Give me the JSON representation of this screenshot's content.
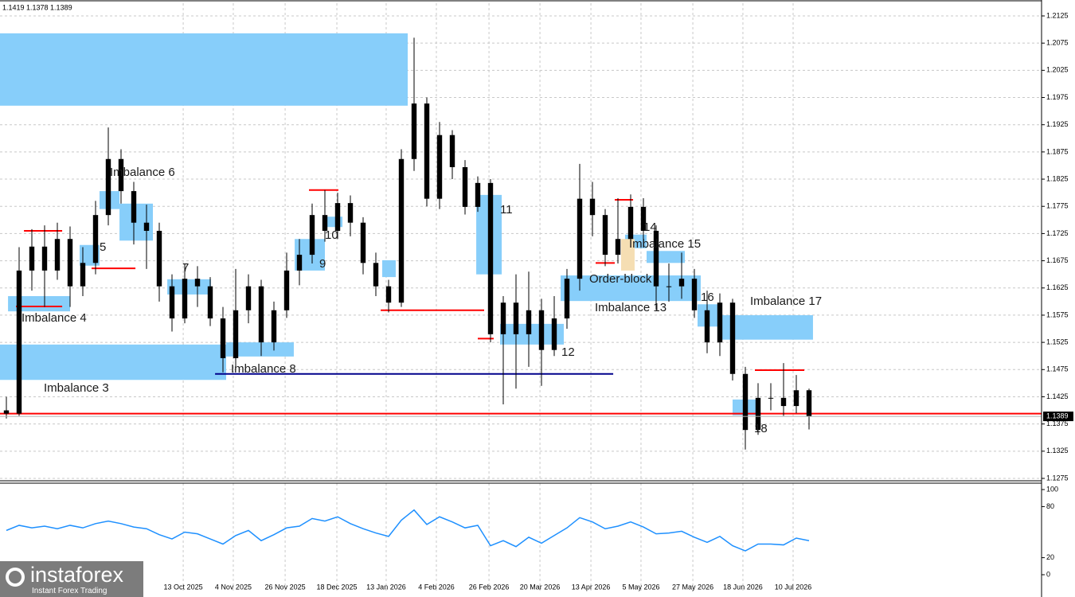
{
  "chart_data": [
    {
      "type": "candlestick",
      "title": "1.1419 1.1378 1.1389",
      "color": "#000000",
      "grid": true,
      "open": [
        1.14,
        1.1394,
        1.1657,
        1.1701,
        1.1657,
        1.1715,
        1.1628,
        1.1671,
        1.1759,
        1.1862,
        1.1803,
        1.1745,
        1.173,
        1.1628,
        1.1569,
        1.1642,
        1.1628,
        1.1569,
        1.1496,
        1.1584,
        1.1628,
        1.1525,
        1.1584,
        1.1657,
        1.1686,
        1.1759,
        1.173,
        1.1781,
        1.1745,
        1.1671,
        1.1628,
        1.1598,
        1.1862,
        1.1964,
        1.1789,
        1.1906,
        1.1847,
        1.1774,
        1.1818,
        1.154,
        1.1598,
        1.154,
        1.1584,
        1.1511,
        1.1569,
        1.1642,
        1.1789,
        1.1759,
        1.1686,
        1.1715,
        1.1774,
        1.173,
        1.1628,
        1.1628,
        1.1642,
        1.1584,
        1.1525,
        1.1598,
        1.1467,
        1.1364,
        1.1423,
        1.1423,
        1.1408,
        1.1437
      ],
      "high": [
        1.1425,
        1.17,
        1.1733,
        1.174,
        1.1745,
        1.1738,
        1.17,
        1.1785,
        1.192,
        1.188,
        1.182,
        1.1778,
        1.1745,
        1.165,
        1.167,
        1.1665,
        1.1645,
        1.159,
        1.166,
        1.165,
        1.164,
        1.16,
        1.169,
        1.1715,
        1.178,
        1.1805,
        1.18,
        1.1795,
        1.1755,
        1.169,
        1.164,
        1.188,
        1.2085,
        1.1975,
        1.193,
        1.1915,
        1.186,
        1.183,
        1.1825,
        1.161,
        1.165,
        1.1655,
        1.1605,
        1.161,
        1.166,
        1.1853,
        1.182,
        1.177,
        1.179,
        1.1797,
        1.179,
        1.174,
        1.167,
        1.169,
        1.166,
        1.162,
        1.1615,
        1.1605,
        1.148,
        1.145,
        1.145,
        1.1487,
        1.1465,
        1.144
      ],
      "low": [
        1.1385,
        1.139,
        1.162,
        1.159,
        1.164,
        1.159,
        1.161,
        1.165,
        1.174,
        1.178,
        1.1705,
        1.166,
        1.16,
        1.1545,
        1.156,
        1.159,
        1.1555,
        1.147,
        1.148,
        1.156,
        1.15,
        1.151,
        1.157,
        1.163,
        1.167,
        1.171,
        1.1715,
        1.172,
        1.165,
        1.161,
        1.158,
        1.159,
        1.184,
        1.1775,
        1.177,
        1.1825,
        1.176,
        1.1765,
        1.1525,
        1.1411,
        1.144,
        1.148,
        1.1445,
        1.15,
        1.155,
        1.162,
        1.172,
        1.1665,
        1.167,
        1.17,
        1.17,
        1.1585,
        1.16,
        1.1605,
        1.157,
        1.1505,
        1.15,
        1.1455,
        1.1328,
        1.1355,
        1.14,
        1.139,
        1.1395,
        1.1365
      ],
      "close": [
        1.1394,
        1.1657,
        1.1701,
        1.1657,
        1.1715,
        1.1628,
        1.1671,
        1.1759,
        1.1862,
        1.1803,
        1.1745,
        1.173,
        1.1628,
        1.1569,
        1.1642,
        1.1628,
        1.1569,
        1.1496,
        1.1584,
        1.1628,
        1.1525,
        1.1584,
        1.1657,
        1.1686,
        1.1759,
        1.173,
        1.1781,
        1.1745,
        1.1671,
        1.1628,
        1.1598,
        1.1862,
        1.1964,
        1.1789,
        1.1906,
        1.1847,
        1.1774,
        1.1818,
        1.154,
        1.1598,
        1.154,
        1.1584,
        1.1511,
        1.1569,
        1.1642,
        1.1789,
        1.1759,
        1.1686,
        1.1715,
        1.1774,
        1.173,
        1.1628,
        1.1628,
        1.1642,
        1.1584,
        1.1525,
        1.1598,
        1.1467,
        1.1364,
        1.1423,
        1.1423,
        1.1408,
        1.1437,
        1.1389
      ],
      "xlim": [
        0,
        81.75
      ],
      "xticks": [
        {
          "value": 14.38,
          "label": "13 Oct 2025"
        },
        {
          "value": 18.31,
          "label": "4 Nov 2025"
        },
        {
          "value": 22.38,
          "label": "26 Nov 2025"
        },
        {
          "value": 26.44,
          "label": "18 Dec 2025"
        },
        {
          "value": 30.31,
          "label": "13 Jan 2026"
        },
        {
          "value": 34.25,
          "label": "4 Feb 2026"
        },
        {
          "value": 38.38,
          "label": "26 Feb 2026"
        },
        {
          "value": 42.38,
          "label": "20 Mar 2026"
        },
        {
          "value": 46.38,
          "label": "13 Apr 2026"
        },
        {
          "value": 50.31,
          "label": "5 May 2026"
        },
        {
          "value": 54.38,
          "label": "27 May 2026"
        },
        {
          "value": 58.31,
          "label": "18 Jun 2026"
        },
        {
          "value": 62.25,
          "label": "10 Jul 2026"
        }
      ],
      "ylim": [
        1.12706,
        1.21484
      ],
      "yticks": [
        1.2125,
        1.2075,
        1.2025,
        1.1975,
        1.1925,
        1.1875,
        1.1825,
        1.1775,
        1.1725,
        1.1675,
        1.1625,
        1.1575,
        1.1525,
        1.1475,
        1.1425,
        1.1375,
        1.1325,
        1.1275
      ],
      "last_price": 1.1389,
      "zone_color": "#87cefa",
      "zones": [
        {
          "x": [
            0,
            32
          ],
          "y": [
            1.196,
            1.2093
          ]
        },
        {
          "label": "Imbalance 3",
          "x": [
            0,
            17.75
          ],
          "y": [
            1.1456,
            1.1521
          ]
        },
        {
          "label": "Imbalance 4",
          "x": [
            0.63,
            5.5
          ],
          "y": [
            1.1582,
            1.161
          ]
        },
        {
          "label": "5",
          "x": [
            6.25,
            7.81
          ],
          "y": [
            1.1666,
            1.1704
          ]
        },
        {
          "label": "Imbalance 6",
          "x": [
            7.81,
            9.38
          ],
          "y": [
            1.177,
            1.1803
          ]
        },
        {
          "x": [
            9.38,
            12
          ],
          "y": [
            1.1712,
            1.178
          ]
        },
        {
          "label": "7",
          "x": [
            13.13,
            16.56
          ],
          "y": [
            1.1613,
            1.1641
          ]
        },
        {
          "label": "Imbalance 8",
          "x": [
            17.75,
            23.06
          ],
          "y": [
            1.1499,
            1.1525
          ]
        },
        {
          "label": "9",
          "x": [
            23.13,
            25.5
          ],
          "y": [
            1.1657,
            1.1715
          ]
        },
        {
          "label": "10",
          "x": [
            25.31,
            26.88
          ],
          "y": [
            1.1737,
            1.1756
          ]
        },
        {
          "x": [
            30,
            31.06
          ],
          "y": [
            1.1645,
            1.1676
          ]
        },
        {
          "label": "11",
          "x": [
            37.38,
            39.38
          ],
          "y": [
            1.165,
            1.1796
          ]
        },
        {
          "label": "12",
          "x": [
            39.25,
            44.25
          ],
          "y": [
            1.1521,
            1.1559
          ]
        },
        {
          "label": "Order-block",
          "x": [
            44,
            55
          ],
          "y": [
            1.1601,
            1.1648
          ]
        },
        {
          "label": "Imbalance 13",
          "x": [
            50.75,
            55
          ],
          "y": [
            1.162,
            1.1648
          ]
        },
        {
          "label": "14",
          "x": [
            49.06,
            50.75
          ],
          "y": [
            1.1698,
            1.1723
          ]
        },
        {
          "label": "Imbalance 15",
          "x": [
            50.75,
            53.75
          ],
          "y": [
            1.1671,
            1.1693
          ]
        },
        {
          "label": "16",
          "x": [
            54.75,
            56.56
          ],
          "y": [
            1.1554,
            1.1595
          ]
        },
        {
          "label": "Imbalance 17",
          "x": [
            56.56,
            63.81
          ],
          "y": [
            1.153,
            1.1575
          ]
        },
        {
          "label": "18",
          "x": [
            57.5,
            59.5
          ],
          "y": [
            1.1391,
            1.142
          ]
        },
        {
          "x": [
            48.75,
            49.81
          ],
          "y": [
            1.1657,
            1.1715
          ],
          "color": "#f5deb3"
        }
      ],
      "levels": [
        {
          "value": 1.1394,
          "x": [
            0,
            81.75
          ],
          "color": "#ff0000"
        },
        {
          "value": 1.173,
          "x": [
            1.88,
            4.88
          ],
          "color": "#ff0000"
        },
        {
          "value": 1.1591,
          "x": [
            1.25,
            4.88
          ],
          "color": "#ff0000"
        },
        {
          "value": 1.1661,
          "x": [
            7.19,
            10.63
          ],
          "color": "#ff0000"
        },
        {
          "value": 1.1805,
          "x": [
            24.25,
            26.56
          ],
          "color": "#ff0000"
        },
        {
          "value": 1.1584,
          "x": [
            29.88,
            38
          ],
          "color": "#ff0000"
        },
        {
          "value": 1.1532,
          "x": [
            37.5,
            38.75
          ],
          "color": "#ff0000"
        },
        {
          "value": 1.1671,
          "x": [
            46.75,
            48.25
          ],
          "color": "#ff0000"
        },
        {
          "value": 1.1787,
          "x": [
            48.25,
            49.69
          ],
          "color": "#ff0000"
        },
        {
          "value": 1.1474,
          "x": [
            59.25,
            63.13
          ],
          "color": "#ff0000"
        },
        {
          "value": 1.1467,
          "x": [
            16.88,
            48.13
          ],
          "color": "#00008b"
        }
      ]
    },
    {
      "type": "line",
      "xlim": [
        0,
        81.75
      ],
      "ylim": [
        -21.5,
        107.5
      ],
      "yticks": [
        100,
        80,
        20,
        0
      ],
      "grid": true,
      "series": [
        {
          "color": "#1e90ff",
          "values": [
            52,
            58,
            55,
            57,
            54,
            58,
            55,
            60,
            63,
            60,
            56,
            54,
            47,
            42,
            50,
            48,
            42,
            36,
            46,
            52,
            40,
            47,
            55,
            57,
            66,
            63,
            68,
            60,
            54,
            49,
            45,
            64,
            76,
            59,
            68,
            62,
            55,
            58,
            34,
            40,
            33,
            44,
            37,
            46,
            55,
            67,
            62,
            54,
            57,
            62,
            56,
            48,
            49,
            51,
            44,
            38,
            45,
            34,
            28,
            36,
            36,
            35,
            43,
            40
          ]
        }
      ]
    }
  ],
  "branding": {
    "name": "instaforex",
    "tagline": "Instant Forex Trading"
  }
}
